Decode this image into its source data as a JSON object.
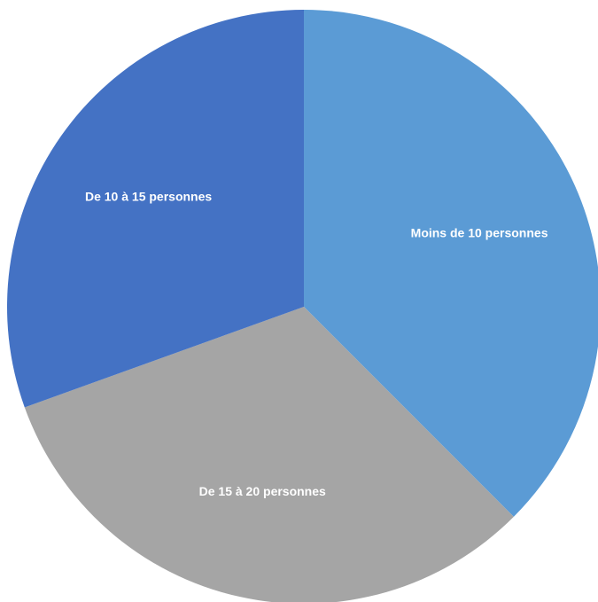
{
  "chart_data": {
    "type": "pie",
    "title": "",
    "start_angle_deg": 0,
    "direction": "clockwise",
    "slices": [
      {
        "label": "Moins de 10 personnes",
        "value": 37.5,
        "color": "#5b9bd5"
      },
      {
        "label": "De 15 à 20 personnes",
        "value": 32.0,
        "color": "#a5a5a5"
      },
      {
        "label": "De 10 à 15 personnes",
        "value": 30.5,
        "color": "#4472c4"
      }
    ],
    "legend": "none",
    "labels_inside": true
  }
}
